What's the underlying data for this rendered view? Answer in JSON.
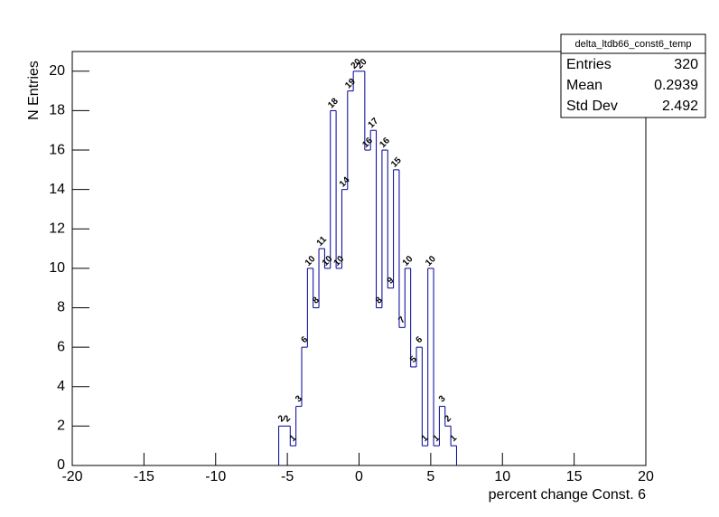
{
  "chart_data": {
    "type": "histogram",
    "bins": [
      -5.6,
      -5.2,
      -4.8,
      -4.4,
      -4.0,
      -3.6,
      -3.2,
      -2.8,
      -2.4,
      -2.0,
      -1.6,
      -1.2,
      -0.8,
      -0.4,
      0.0,
      0.4,
      0.8,
      1.2,
      1.6,
      2.0,
      2.4,
      2.8,
      3.2,
      3.6,
      4.0,
      4.4,
      4.8,
      5.2,
      5.6,
      6.0,
      6.4,
      6.8
    ],
    "values": [
      2,
      2,
      1,
      3,
      6,
      10,
      8,
      11,
      10,
      18,
      10,
      14,
      19,
      20,
      20,
      16,
      17,
      8,
      16,
      9,
      15,
      7,
      10,
      5,
      6,
      1,
      10,
      1,
      3,
      2,
      1
    ],
    "color": "#000099",
    "xlabel": "percent change Const. 6",
    "ylabel": "N Entries",
    "xlim": [
      -20,
      20
    ],
    "xticks": [
      -20,
      -15,
      -10,
      -5,
      0,
      5,
      10,
      15,
      20
    ],
    "ylim": [
      0,
      21
    ],
    "yticks": [
      0,
      2,
      4,
      6,
      8,
      10,
      12,
      14,
      16,
      18,
      20
    ],
    "stats": {
      "title": "delta_ltdb66_const6_temp",
      "rows": [
        {
          "label": "Entries",
          "value": 320
        },
        {
          "label": "Mean",
          "value": 0.2939
        },
        {
          "label": "Std Dev",
          "value": 2.492
        }
      ]
    }
  }
}
